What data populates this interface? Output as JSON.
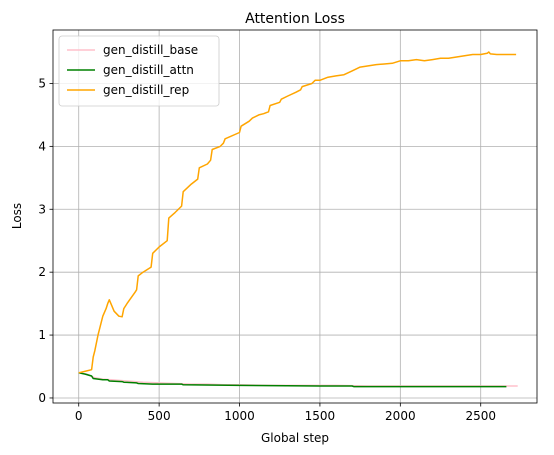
{
  "chart_data": {
    "type": "line",
    "title": "Attention Loss",
    "xlabel": "Global step",
    "ylabel": "Loss",
    "xlim": [
      -160,
      2850
    ],
    "ylim": [
      -0.08,
      5.85
    ],
    "xticks": [
      0,
      500,
      1000,
      1500,
      2000,
      2500
    ],
    "yticks": [
      0,
      1,
      2,
      3,
      4,
      5
    ],
    "grid": true,
    "legend_position": "top-left",
    "series": [
      {
        "name": "gen_distill_base",
        "color": "#ffc0cb",
        "x": [
          0,
          50,
          100,
          150,
          200,
          300,
          400,
          500,
          600,
          700,
          800,
          900,
          1000,
          1200,
          1400,
          1600,
          1800,
          2000,
          2200,
          2400,
          2600,
          2700,
          2730
        ],
        "y": [
          0.4,
          0.38,
          0.32,
          0.3,
          0.29,
          0.27,
          0.25,
          0.24,
          0.23,
          0.22,
          0.22,
          0.21,
          0.21,
          0.2,
          0.2,
          0.2,
          0.19,
          0.19,
          0.19,
          0.19,
          0.19,
          0.19,
          0.19
        ]
      },
      {
        "name": "gen_distill_attn",
        "color": "#008000",
        "x": [
          0,
          40,
          80,
          90,
          150,
          180,
          190,
          270,
          280,
          360,
          370,
          460,
          640,
          650,
          1000,
          1500,
          1700,
          1710,
          2000,
          2200,
          2400,
          2660
        ],
        "y": [
          0.4,
          0.38,
          0.35,
          0.31,
          0.29,
          0.29,
          0.27,
          0.26,
          0.25,
          0.24,
          0.23,
          0.22,
          0.22,
          0.21,
          0.2,
          0.19,
          0.19,
          0.18,
          0.18,
          0.18,
          0.18,
          0.18
        ]
      },
      {
        "name": "gen_distill_rep",
        "color": "#ffa500",
        "x": [
          0,
          50,
          80,
          90,
          100,
          120,
          150,
          170,
          180,
          190,
          200,
          220,
          250,
          270,
          280,
          300,
          350,
          360,
          370,
          400,
          450,
          460,
          500,
          550,
          560,
          600,
          640,
          650,
          700,
          740,
          750,
          800,
          820,
          830,
          880,
          900,
          910,
          1000,
          1010,
          1060,
          1080,
          1120,
          1150,
          1180,
          1190,
          1250,
          1260,
          1300,
          1350,
          1380,
          1390,
          1450,
          1470,
          1500,
          1550,
          1600,
          1650,
          1700,
          1750,
          1800,
          1850,
          1900,
          1950,
          2000,
          2050,
          2100,
          2150,
          2200,
          2250,
          2300,
          2350,
          2400,
          2450,
          2500,
          2540,
          2550,
          2560,
          2600,
          2650,
          2700,
          2720
        ],
        "y": [
          0.4,
          0.43,
          0.45,
          0.65,
          0.75,
          1.0,
          1.3,
          1.42,
          1.5,
          1.56,
          1.5,
          1.38,
          1.3,
          1.29,
          1.42,
          1.5,
          1.68,
          1.72,
          1.94,
          2.0,
          2.08,
          2.3,
          2.4,
          2.5,
          2.86,
          2.95,
          3.05,
          3.28,
          3.4,
          3.48,
          3.66,
          3.72,
          3.78,
          3.95,
          4.0,
          4.05,
          4.12,
          4.22,
          4.32,
          4.4,
          4.45,
          4.5,
          4.52,
          4.55,
          4.65,
          4.7,
          4.75,
          4.8,
          4.86,
          4.9,
          4.95,
          5.0,
          5.05,
          5.05,
          5.1,
          5.12,
          5.14,
          5.2,
          5.26,
          5.28,
          5.3,
          5.31,
          5.32,
          5.36,
          5.36,
          5.38,
          5.36,
          5.38,
          5.4,
          5.4,
          5.42,
          5.44,
          5.46,
          5.46,
          5.48,
          5.5,
          5.47,
          5.46,
          5.46,
          5.46,
          5.46
        ]
      }
    ]
  }
}
